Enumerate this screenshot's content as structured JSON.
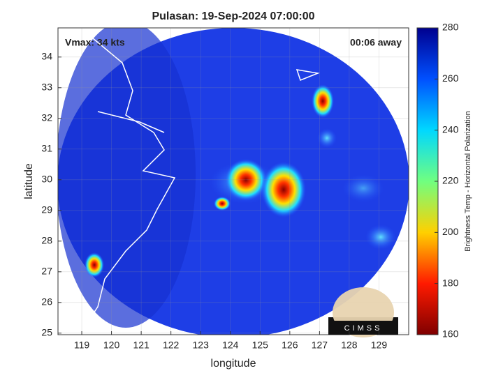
{
  "chart_data": {
    "type": "image",
    "title": "Pulasan: 19-Sep-2024 07:00:00",
    "xlabel": "longitude",
    "ylabel": "latitude",
    "xlim": [
      118.2,
      130
    ],
    "xticks": [
      119,
      120,
      121,
      122,
      123,
      124,
      125,
      126,
      127,
      128,
      129
    ],
    "ylim": [
      24.95,
      34.95
    ],
    "yticks": [
      25,
      26,
      27,
      28,
      29,
      30,
      31,
      32,
      33,
      34
    ],
    "grid": true,
    "annotations": {
      "left": "Vmax: 34 kts",
      "right": "00:06 away"
    },
    "logo": "CIMSS",
    "colorbar": {
      "label": "Brightness Temp - Horizontal Polarization",
      "lim": [
        160,
        280
      ],
      "ticks": [
        160,
        180,
        200,
        220,
        240,
        260,
        280
      ],
      "colors": [
        "#7f0000",
        "#ff1a00",
        "#ffd000",
        "#70ff80",
        "#00d8ff",
        "#0050ff",
        "#00008f"
      ]
    }
  }
}
